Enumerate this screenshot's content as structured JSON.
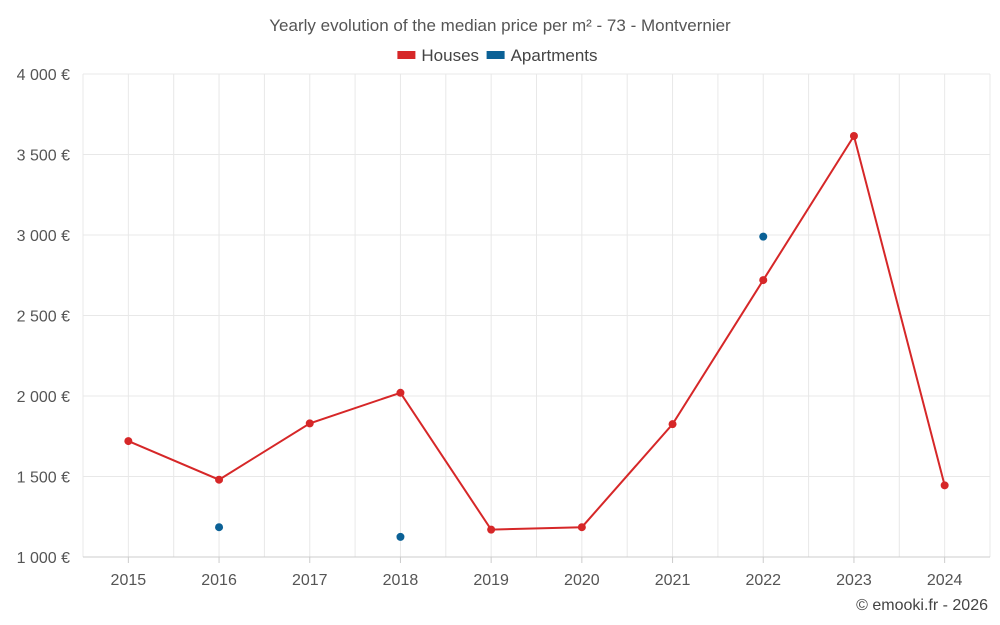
{
  "chart_data": {
    "type": "line",
    "title": "Yearly evolution of the median price per m² - 73 - Montvernier",
    "categories": [
      "2015",
      "2016",
      "2017",
      "2018",
      "2019",
      "2020",
      "2021",
      "2022",
      "2023",
      "2024"
    ],
    "series": [
      {
        "name": "Houses",
        "color": "#d62728",
        "mode": "line+markers",
        "values": [
          1720,
          1480,
          1830,
          2020,
          1170,
          1185,
          1825,
          2720,
          3615,
          1445
        ]
      },
      {
        "name": "Apartments",
        "color": "#0b6196",
        "mode": "markers",
        "values": [
          null,
          1185,
          null,
          1125,
          null,
          null,
          null,
          2990,
          null,
          null
        ]
      }
    ],
    "y_ticks": [
      "1 000 €",
      "1 500 €",
      "2 000 €",
      "2 500 €",
      "3 000 €",
      "3 500 €",
      "4 000 €"
    ],
    "y_tick_values": [
      1000,
      1500,
      2000,
      2500,
      3000,
      3500,
      4000
    ],
    "ylim": [
      1000,
      4000
    ],
    "xlabel": "",
    "ylabel": "",
    "grid": true,
    "legend_position": "top-center"
  },
  "credit": "© emooki.fr - 2026"
}
